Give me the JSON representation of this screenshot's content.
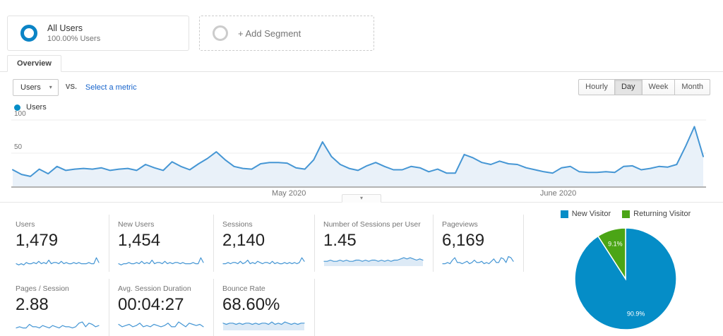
{
  "colors": {
    "accent_blue": "#058dc7",
    "line_blue": "#4596d4",
    "area_blue": "#e9f1f9",
    "spark_fill": "#ddeaf6",
    "green": "#4ba516",
    "link_blue": "#1764cc",
    "grid": "#ececec",
    "baseline": "#b3b3b3"
  },
  "icons": {
    "dropdown_caret": "▾",
    "handle_caret": "▾"
  },
  "segments": {
    "all_users": {
      "title": "All Users",
      "subtitle": "100.00% Users"
    },
    "add_segment": {
      "label": "+ Add Segment"
    }
  },
  "tabs": {
    "overview": "Overview"
  },
  "controls": {
    "metric_select": {
      "value": "Users"
    },
    "vs_label": "VS.",
    "select_metric_link": "Select a metric",
    "granularity": {
      "options": [
        "Hourly",
        "Day",
        "Week",
        "Month"
      ],
      "selected": "Day"
    }
  },
  "legend": {
    "label": "Users"
  },
  "chart_data": [
    {
      "type": "line",
      "series_name": "Users",
      "ylim": [
        0,
        100
      ],
      "yticks": [
        50,
        100
      ],
      "grid": true,
      "x_month_labels": [
        {
          "label": "May 2020",
          "pos": 0.4
        },
        {
          "label": "June 2020",
          "pos": 0.79
        }
      ],
      "values": [
        25,
        18,
        15,
        26,
        19,
        30,
        24,
        26,
        27,
        26,
        28,
        24,
        26,
        27,
        24,
        33,
        28,
        24,
        37,
        30,
        25,
        34,
        42,
        52,
        40,
        30,
        27,
        26,
        34,
        36,
        36,
        35,
        28,
        26,
        40,
        67,
        45,
        33,
        27,
        24,
        31,
        36,
        30,
        25,
        25,
        30,
        28,
        22,
        26,
        20,
        20,
        48,
        43,
        36,
        33,
        38,
        34,
        33,
        28,
        25,
        22,
        20,
        28,
        30,
        22,
        21,
        21,
        22,
        21,
        30,
        31,
        25,
        27,
        30,
        29,
        33,
        60,
        90,
        45
      ]
    },
    {
      "type": "pie",
      "legend_position": "top",
      "slices": [
        {
          "label": "New Visitor",
          "value": 90.9,
          "pct_label": "90.9%",
          "color": "#058dc7"
        },
        {
          "label": "Returning Visitor",
          "value": 9.1,
          "pct_label": "9.1%",
          "color": "#4ba516"
        }
      ]
    }
  ],
  "scorecards": {
    "rows": [
      [
        {
          "label": "Users",
          "value": "1,479",
          "fill": false,
          "spark": [
            2,
            1,
            2,
            1,
            3,
            2,
            2,
            3,
            2,
            4,
            2,
            3,
            2,
            5,
            2,
            3,
            3,
            2,
            4,
            2,
            3,
            2,
            2,
            3,
            2,
            3,
            2,
            2,
            2,
            3,
            2,
            2,
            7,
            3
          ]
        },
        {
          "label": "New Users",
          "value": "1,454",
          "fill": false,
          "spark": [
            2,
            1,
            2,
            2,
            3,
            2,
            2,
            3,
            2,
            4,
            2,
            3,
            2,
            5,
            2,
            3,
            3,
            2,
            4,
            2,
            3,
            2,
            3,
            3,
            2,
            3,
            2,
            2,
            2,
            3,
            2,
            2,
            7,
            3
          ]
        },
        {
          "label": "Sessions",
          "value": "2,140",
          "fill": false,
          "spark": [
            2,
            2,
            3,
            2,
            3,
            3,
            2,
            4,
            2,
            3,
            5,
            2,
            3,
            2,
            4,
            3,
            2,
            3,
            3,
            2,
            4,
            2,
            3,
            2,
            2,
            3,
            2,
            3,
            2,
            3,
            2,
            3,
            7,
            4
          ]
        },
        {
          "label": "Number of Sessions per User",
          "value": "1.45",
          "fill": true,
          "spark": [
            4,
            4,
            5,
            4,
            4,
            5,
            4,
            5,
            4,
            4,
            5,
            5,
            4,
            5,
            4,
            5,
            5,
            4,
            5,
            4,
            5,
            4,
            5,
            5,
            6,
            7,
            6,
            7,
            6,
            5,
            6,
            5
          ]
        },
        {
          "label": "Pageviews",
          "value": "6,169",
          "fill": false,
          "spark": [
            2,
            2,
            3,
            2,
            5,
            7,
            3,
            3,
            2,
            3,
            4,
            2,
            3,
            5,
            3,
            3,
            4,
            2,
            3,
            2,
            4,
            6,
            3,
            3,
            7,
            6,
            3,
            8,
            7,
            4
          ]
        }
      ],
      [
        {
          "label": "Pages / Session",
          "value": "2.88",
          "fill": false,
          "spark": [
            2,
            3,
            2,
            2,
            5,
            3,
            3,
            2,
            4,
            3,
            2,
            4,
            3,
            2,
            4,
            3,
            3,
            2,
            3,
            6,
            7,
            3,
            6,
            5,
            3,
            4
          ]
        },
        {
          "label": "Avg. Session Duration",
          "value": "00:04:27",
          "fill": false,
          "spark": [
            5,
            3,
            4,
            5,
            3,
            4,
            6,
            3,
            4,
            3,
            5,
            4,
            3,
            4,
            6,
            3,
            3,
            7,
            5,
            3,
            6,
            5,
            4,
            5,
            3
          ]
        },
        {
          "label": "Bounce Rate",
          "value": "68.60%",
          "fill": true,
          "spark": [
            6,
            5,
            6,
            6,
            5,
            6,
            5,
            6,
            6,
            5,
            6,
            5,
            6,
            6,
            5,
            7,
            5,
            6,
            5,
            7,
            6,
            5,
            6,
            5,
            6,
            6
          ]
        }
      ]
    ]
  }
}
